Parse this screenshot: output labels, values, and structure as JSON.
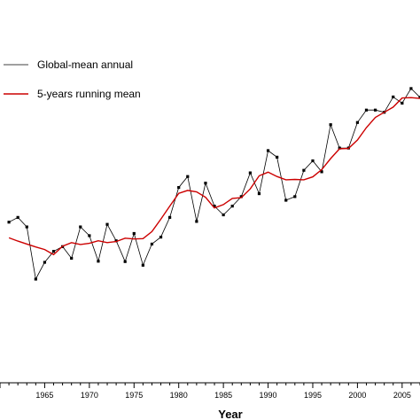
{
  "chart_data": {
    "type": "line",
    "title": "",
    "xlabel": "Year",
    "ylabel": "",
    "x_tick_labels": [
      "1965",
      "1970",
      "1975",
      "1980",
      "1985",
      "1990",
      "1995",
      "2000",
      "2005"
    ],
    "xlim": [
      1960,
      2007
    ],
    "ylim": [
      0,
      1
    ],
    "grid": false,
    "legend": {
      "placement": "top-left",
      "entries": [
        "Global-mean annual",
        "5-years running mean"
      ]
    },
    "colors": {
      "annual": "#000000",
      "running_mean": "#cc0000",
      "axis": "#000000"
    },
    "series": [
      {
        "name": "Global-mean annual",
        "style": "line-with-markers",
        "x": [
          1961,
          1962,
          1963,
          1964,
          1965,
          1966,
          1967,
          1968,
          1969,
          1970,
          1971,
          1972,
          1973,
          1974,
          1975,
          1976,
          1977,
          1978,
          1979,
          1980,
          1981,
          1982,
          1983,
          1984,
          1985,
          1986,
          1987,
          1988,
          1989,
          1990,
          1991,
          1992,
          1993,
          1994,
          1995,
          1996,
          1997,
          1998,
          1999,
          2000,
          2001,
          2002,
          2003,
          2004,
          2005,
          2006,
          2007
        ],
        "values": [
          0.44,
          0.453,
          0.427,
          0.284,
          0.33,
          0.36,
          0.373,
          0.341,
          0.427,
          0.403,
          0.333,
          0.434,
          0.389,
          0.332,
          0.409,
          0.322,
          0.38,
          0.399,
          0.453,
          0.535,
          0.565,
          0.442,
          0.547,
          0.484,
          0.46,
          0.484,
          0.51,
          0.575,
          0.518,
          0.636,
          0.618,
          0.5,
          0.51,
          0.582,
          0.608,
          0.578,
          0.707,
          0.643,
          0.643,
          0.713,
          0.747,
          0.747,
          0.741,
          0.783,
          0.766,
          0.806,
          0.782
        ]
      },
      {
        "name": "5-years running mean",
        "style": "line",
        "x": [
          1961,
          1962,
          1963,
          1964,
          1965,
          1966,
          1967,
          1968,
          1969,
          1970,
          1971,
          1972,
          1973,
          1974,
          1975,
          1976,
          1977,
          1978,
          1979,
          1980,
          1981,
          1982,
          1983,
          1984,
          1985,
          1986,
          1987,
          1988,
          1989,
          1990,
          1991,
          1992,
          1993,
          1994,
          1995,
          1996,
          1997,
          1998,
          1999,
          2000,
          2001,
          2002,
          2003,
          2004,
          2005,
          2006,
          2007
        ],
        "values": [
          0.397,
          0.388,
          0.38,
          0.372,
          0.365,
          0.351,
          0.374,
          0.384,
          0.379,
          0.382,
          0.389,
          0.384,
          0.387,
          0.396,
          0.394,
          0.395,
          0.414,
          0.448,
          0.484,
          0.519,
          0.527,
          0.523,
          0.508,
          0.479,
          0.488,
          0.505,
          0.507,
          0.531,
          0.567,
          0.577,
          0.565,
          0.556,
          0.557,
          0.556,
          0.564,
          0.584,
          0.614,
          0.641,
          0.642,
          0.665,
          0.699,
          0.727,
          0.741,
          0.755,
          0.78,
          0.781,
          0.779
        ]
      }
    ]
  }
}
